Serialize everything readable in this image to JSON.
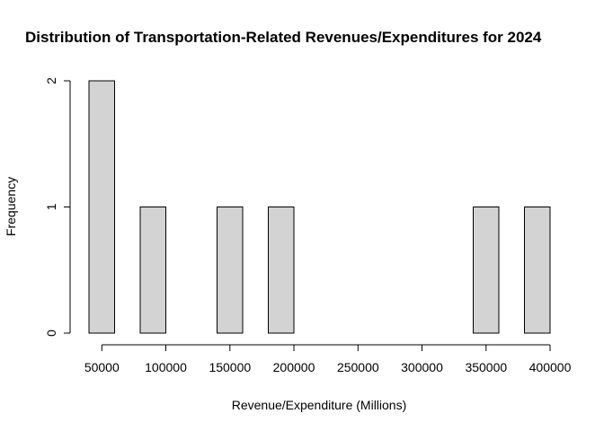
{
  "chart_data": {
    "type": "bar",
    "title": "Distribution of Transportation-Related Revenues/Expenditures for 2024",
    "xlabel": "Revenue/Expenditure (Millions)",
    "ylabel": "Frequency",
    "bins": [
      {
        "start": 40000,
        "end": 60000,
        "count": 2
      },
      {
        "start": 60000,
        "end": 80000,
        "count": 0
      },
      {
        "start": 80000,
        "end": 100000,
        "count": 1
      },
      {
        "start": 100000,
        "end": 120000,
        "count": 0
      },
      {
        "start": 120000,
        "end": 140000,
        "count": 0
      },
      {
        "start": 140000,
        "end": 160000,
        "count": 1
      },
      {
        "start": 160000,
        "end": 180000,
        "count": 0
      },
      {
        "start": 180000,
        "end": 200000,
        "count": 1
      },
      {
        "start": 200000,
        "end": 220000,
        "count": 0
      },
      {
        "start": 220000,
        "end": 240000,
        "count": 0
      },
      {
        "start": 240000,
        "end": 260000,
        "count": 0
      },
      {
        "start": 260000,
        "end": 280000,
        "count": 0
      },
      {
        "start": 280000,
        "end": 300000,
        "count": 0
      },
      {
        "start": 300000,
        "end": 320000,
        "count": 0
      },
      {
        "start": 320000,
        "end": 340000,
        "count": 0
      },
      {
        "start": 340000,
        "end": 360000,
        "count": 1
      },
      {
        "start": 360000,
        "end": 380000,
        "count": 0
      },
      {
        "start": 380000,
        "end": 400000,
        "count": 1
      }
    ],
    "xticks": [
      50000,
      100000,
      150000,
      200000,
      250000,
      300000,
      350000,
      400000
    ],
    "yticks": [
      0,
      1,
      2
    ],
    "xlim": [
      40000,
      400000
    ],
    "ylim": [
      0,
      2
    ],
    "grid": false,
    "bar_color": "#d3d3d3"
  }
}
